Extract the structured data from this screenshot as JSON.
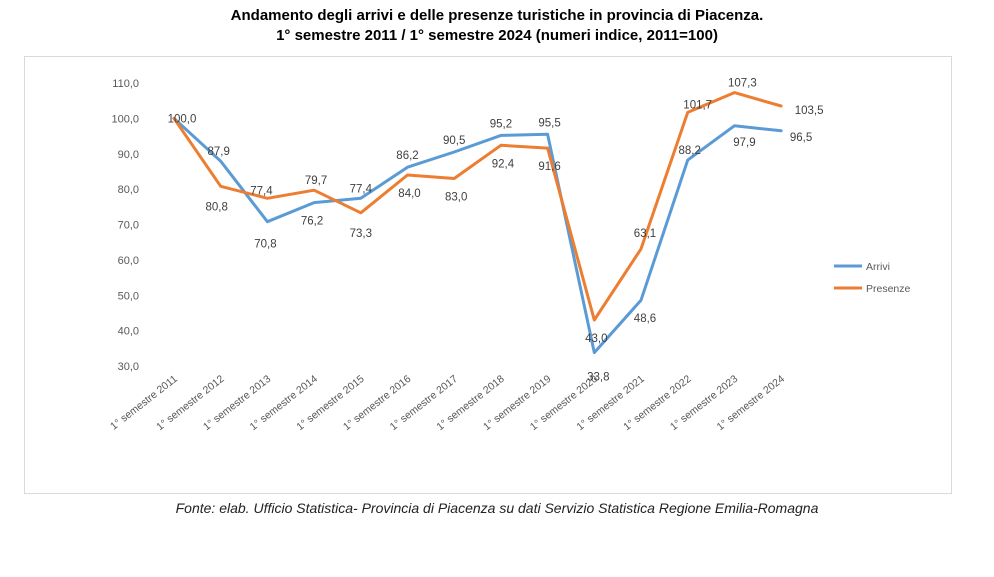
{
  "title_line1": "Andamento degli arrivi e delle presenze turistiche in provincia di Piacenza.",
  "title_line2": "1° semestre 2011 / 1° semestre 2024 (numeri indice, 2011=100)",
  "source": "Fonte: elab. Ufficio Statistica- Provincia di Piacenza su dati Servizio Statistica Regione Emilia-Romagna",
  "chart_data": {
    "type": "line",
    "categories": [
      "1° semestre 2011",
      "1° semestre 2012",
      "1° semestre 2013",
      "1° semestre 2014",
      "1° semestre 2015",
      "1° semestre 2016",
      "1° semestre 2017",
      "1° semestre 2018",
      "1° semestre 2019",
      "1° semestre 2020",
      "1° semestre 2021",
      "1° semestre 2022",
      "1° semestre 2023",
      "1° semestre 2024"
    ],
    "ylim": [
      30,
      110
    ],
    "yticks": [
      "30,0",
      "40,0",
      "50,0",
      "60,0",
      "70,0",
      "80,0",
      "90,0",
      "100,0",
      "110,0"
    ],
    "grid": false,
    "legend_position": "right",
    "series": [
      {
        "name": "Arrivi",
        "color": "#5B9BD5",
        "values": [
          100.0,
          87.9,
          70.8,
          76.2,
          77.4,
          86.2,
          90.5,
          95.2,
          95.5,
          33.8,
          48.6,
          88.2,
          97.9,
          96.5
        ],
        "labels": [
          "100,0",
          "87,9",
          "70,8",
          "76,2",
          "77,4",
          "86,2",
          "90,5",
          "95,2",
          "95,5",
          "33,8",
          "48,6",
          "88,2",
          "97,9",
          "96,5"
        ]
      },
      {
        "name": "Presenze",
        "color": "#ED7D31",
        "values": [
          100.0,
          80.8,
          77.4,
          79.7,
          73.3,
          84.0,
          83.0,
          92.4,
          91.6,
          43.0,
          63.1,
          101.7,
          107.3,
          103.5
        ],
        "labels": [
          "",
          "80,8",
          "77,4",
          "79,7",
          "73,3",
          "84,0",
          "83,0",
          "92,4",
          "91,6",
          "43,0",
          "63,1",
          "101,7",
          "107,3",
          "103,5"
        ]
      }
    ]
  }
}
